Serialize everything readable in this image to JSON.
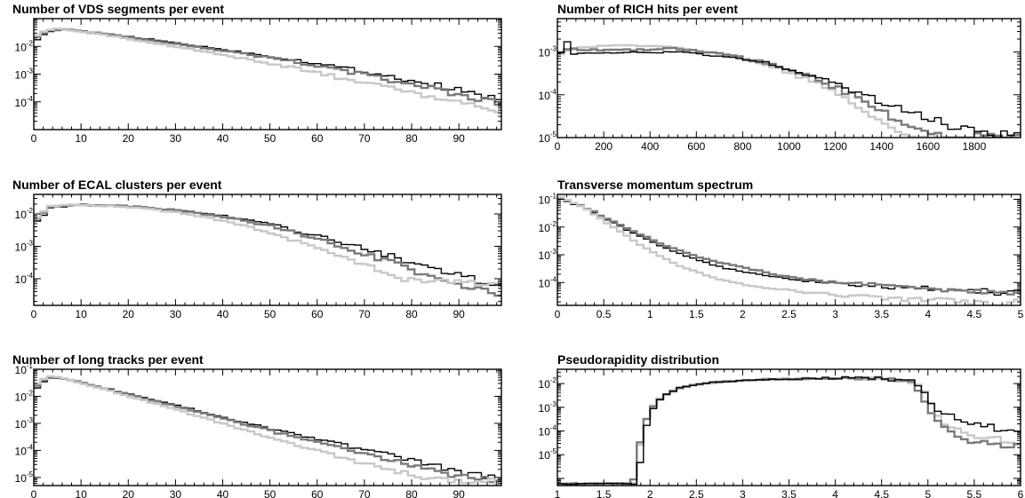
{
  "colors": {
    "black": "#000000",
    "dark_gray": "#7a7a7a",
    "light_gray": "#c8c8c8"
  },
  "chart_data": [
    {
      "id": "vds",
      "type": "line",
      "title": "Number of VDS segments per event",
      "xlim": [
        0,
        99
      ],
      "ylim": [
        1e-05,
        0.1
      ],
      "yscale": "log",
      "xticks": [
        0,
        10,
        20,
        30,
        40,
        50,
        60,
        70,
        80,
        90
      ],
      "xtick_labels": [
        "0",
        "10",
        "20",
        "30",
        "40",
        "50",
        "60",
        "70",
        "80",
        "90"
      ],
      "yticks": [
        0.0001,
        0.001,
        0.01
      ],
      "ytick_exps": [
        "-4",
        "-3",
        "-2"
      ],
      "ytick_base": "10",
      "series": [
        {
          "color": "black",
          "x": [
            0,
            2,
            5,
            8,
            15,
            25,
            40,
            55,
            70,
            85,
            99
          ],
          "y": [
            0.018,
            0.032,
            0.04,
            0.037,
            0.028,
            0.017,
            0.0075,
            0.0032,
            0.0012,
            0.00038,
            0.00011
          ]
        },
        {
          "color": "dark_gray",
          "x": [
            0,
            2,
            5,
            8,
            15,
            25,
            40,
            55,
            70,
            85,
            99
          ],
          "y": [
            0.022,
            0.036,
            0.042,
            0.038,
            0.027,
            0.016,
            0.0068,
            0.0027,
            0.0009,
            0.00026,
            8e-05
          ]
        },
        {
          "color": "light_gray",
          "x": [
            0,
            2,
            5,
            8,
            15,
            25,
            40,
            55,
            70,
            85,
            99
          ],
          "y": [
            0.025,
            0.04,
            0.043,
            0.037,
            0.025,
            0.013,
            0.0048,
            0.0016,
            0.00045,
            0.00013,
            4e-05
          ]
        }
      ]
    },
    {
      "id": "rich",
      "type": "line",
      "title": "Number of RICH hits per event",
      "xlim": [
        0,
        2000
      ],
      "ylim": [
        1e-05,
        0.006
      ],
      "yscale": "log",
      "xticks": [
        0,
        200,
        400,
        600,
        800,
        1000,
        1200,
        1400,
        1600,
        1800
      ],
      "xtick_labels": [
        "0",
        "200",
        "400",
        "600",
        "800",
        "1000",
        "1200",
        "1400",
        "1600",
        "1800"
      ],
      "yticks": [
        1e-05,
        0.0001,
        0.001
      ],
      "ytick_exps": [
        "-5",
        "-4",
        "-3"
      ],
      "ytick_base": "10",
      "series": [
        {
          "color": "light_gray",
          "x": [
            0,
            25,
            100,
            300,
            500,
            700,
            900,
            1100,
            1300,
            1450,
            1500
          ],
          "y": [
            0.0009,
            0.0011,
            0.0013,
            0.0014,
            0.0013,
            0.0009,
            0.0005,
            0.00019,
            5e-05,
            1.5e-05,
            1e-05
          ]
        },
        {
          "color": "dark_gray",
          "x": [
            0,
            25,
            100,
            300,
            500,
            700,
            900,
            1100,
            1300,
            1500,
            1650
          ],
          "y": [
            0.001,
            0.0012,
            0.0011,
            0.0011,
            0.0012,
            0.0009,
            0.00055,
            0.00024,
            8e-05,
            1.8e-05,
            1e-05
          ]
        },
        {
          "color": "black",
          "x": [
            0,
            20,
            50,
            100,
            300,
            500,
            700,
            900,
            1100,
            1300,
            1500,
            1700,
            2000
          ],
          "y": [
            0.001,
            0.0022,
            0.0009,
            0.0009,
            0.001,
            0.00098,
            0.0008,
            0.00055,
            0.00027,
            0.0001,
            4e-05,
            1.8e-05,
            1e-05
          ]
        }
      ]
    },
    {
      "id": "ecal",
      "type": "line",
      "title": "Number of ECAL clusters per event",
      "xlim": [
        0,
        99
      ],
      "ylim": [
        1.5e-05,
        0.04
      ],
      "yscale": "log",
      "xticks": [
        0,
        10,
        20,
        30,
        40,
        50,
        60,
        70,
        80,
        90
      ],
      "xtick_labels": [
        "0",
        "10",
        "20",
        "30",
        "40",
        "50",
        "60",
        "70",
        "80",
        "90"
      ],
      "yticks": [
        0.0001,
        0.001,
        0.01
      ],
      "ytick_exps": [
        "-4",
        "-3",
        "-2"
      ],
      "ytick_base": "10",
      "series": [
        {
          "color": "black",
          "x": [
            0,
            3,
            10,
            20,
            30,
            40,
            50,
            60,
            70,
            80,
            90,
            99
          ],
          "y": [
            0.006,
            0.016,
            0.019,
            0.017,
            0.013,
            0.0085,
            0.0045,
            0.002,
            0.0008,
            0.0003,
            0.00012,
            6e-05
          ]
        },
        {
          "color": "dark_gray",
          "x": [
            0,
            3,
            10,
            20,
            30,
            40,
            50,
            60,
            70,
            80,
            90,
            99
          ],
          "y": [
            0.007,
            0.017,
            0.019,
            0.017,
            0.0125,
            0.008,
            0.004,
            0.0016,
            0.00055,
            0.00018,
            6e-05,
            3e-05
          ]
        },
        {
          "color": "light_gray",
          "x": [
            0,
            3,
            10,
            20,
            30,
            40,
            50,
            60,
            70,
            80
          ],
          "y": [
            0.008,
            0.018,
            0.019,
            0.016,
            0.011,
            0.006,
            0.0025,
            0.0008,
            0.00025,
            8e-05
          ]
        }
      ]
    },
    {
      "id": "pt",
      "type": "line",
      "title": "Transverse momentum spectrum",
      "xlim": [
        0,
        5
      ],
      "ylim": [
        1.5e-05,
        0.15
      ],
      "yscale": "log",
      "xticks": [
        0,
        0.5,
        1,
        1.5,
        2,
        2.5,
        3,
        3.5,
        4,
        4.5,
        5
      ],
      "xtick_labels": [
        "0",
        "0.5",
        "1",
        "1.5",
        "2",
        "2.5",
        "3",
        "3.5",
        "4",
        "4.5",
        "5"
      ],
      "yticks": [
        0.0001,
        0.001,
        0.01,
        0.1
      ],
      "ytick_exps": [
        "-4",
        "-3",
        "-2",
        "-1"
      ],
      "ytick_base": "10",
      "series": [
        {
          "color": "black",
          "x": [
            0,
            0.25,
            0.5,
            0.75,
            1,
            1.25,
            1.5,
            1.75,
            2,
            2.5,
            3,
            3.5,
            4,
            4.5,
            5
          ],
          "y": [
            0.1,
            0.05,
            0.018,
            0.007,
            0.0028,
            0.0012,
            0.0006,
            0.00035,
            0.00023,
            0.00013,
            9e-05,
            7e-05,
            6e-05,
            5e-05,
            4e-05
          ]
        },
        {
          "color": "dark_gray",
          "x": [
            0,
            0.25,
            0.5,
            0.75,
            1,
            1.25,
            1.5,
            1.75,
            2,
            2.5,
            3,
            3.5,
            4,
            4.5,
            5
          ],
          "y": [
            0.11,
            0.055,
            0.02,
            0.008,
            0.0033,
            0.0015,
            0.0008,
            0.0005,
            0.00033,
            0.00015,
            0.0001,
            8e-05,
            6e-05,
            4.8e-05,
            4e-05
          ]
        },
        {
          "color": "light_gray",
          "x": [
            0,
            0.25,
            0.5,
            0.75,
            1,
            1.25,
            1.5,
            1.75,
            2,
            2.5,
            3,
            3.5,
            4,
            4.5,
            5
          ],
          "y": [
            0.12,
            0.05,
            0.014,
            0.004,
            0.0012,
            0.00045,
            0.00022,
            0.00012,
            8e-05,
            5e-05,
            3.5e-05,
            2.8e-05,
            2.3e-05,
            2e-05,
            1.8e-05
          ]
        }
      ]
    },
    {
      "id": "tracks",
      "type": "line",
      "title": "Number of long tracks per event",
      "xlim": [
        0,
        99
      ],
      "ylim": [
        5e-06,
        0.1
      ],
      "yscale": "log",
      "xticks": [
        0,
        10,
        20,
        30,
        40,
        50,
        60,
        70,
        80,
        90
      ],
      "xtick_labels": [
        "0",
        "10",
        "20",
        "30",
        "40",
        "50",
        "60",
        "70",
        "80",
        "90"
      ],
      "yticks": [
        1e-05,
        0.0001,
        0.001,
        0.01,
        0.1
      ],
      "ytick_exps": [
        "-5",
        "-4",
        "-3",
        "-2",
        "-1"
      ],
      "ytick_base": "10",
      "series": [
        {
          "color": "black",
          "x": [
            0,
            2,
            4,
            10,
            20,
            30,
            40,
            50,
            60,
            70,
            80,
            90,
            99
          ],
          "y": [
            0.02,
            0.045,
            0.05,
            0.03,
            0.012,
            0.0045,
            0.0016,
            0.0006,
            0.00024,
            0.0001,
            4e-05,
            1.5e-05,
            8e-06
          ]
        },
        {
          "color": "dark_gray",
          "x": [
            0,
            2,
            4,
            10,
            20,
            30,
            40,
            50,
            60,
            70,
            80,
            90,
            99
          ],
          "y": [
            0.025,
            0.05,
            0.052,
            0.03,
            0.011,
            0.004,
            0.0014,
            0.0005,
            0.00018,
            7e-05,
            2.5e-05,
            1e-05,
            7e-06
          ]
        },
        {
          "color": "light_gray",
          "x": [
            0,
            2,
            4,
            10,
            20,
            30,
            40,
            50,
            60,
            70,
            80,
            90
          ],
          "y": [
            0.03,
            0.055,
            0.053,
            0.029,
            0.0095,
            0.003,
            0.0009,
            0.00028,
            9e-05,
            3e-05,
            1.2e-05,
            7e-06
          ]
        }
      ]
    },
    {
      "id": "eta",
      "type": "line",
      "title": "Pseudorapidity distribution",
      "xlim": [
        1,
        6
      ],
      "ylim": [
        5e-07,
        0.04
      ],
      "yscale": "log",
      "xticks": [
        1,
        1.5,
        2,
        2.5,
        3,
        3.5,
        4,
        4.5,
        5,
        5.5,
        6
      ],
      "xtick_labels": [
        "1",
        "1.5",
        "2",
        "2.5",
        "3",
        "3.5",
        "4",
        "4.5",
        "5",
        "5.5",
        "6"
      ],
      "yticks": [
        1e-05,
        0.0001,
        0.001,
        0.01
      ],
      "ytick_exps": [
        "-5",
        "-4",
        "-3",
        "-2"
      ],
      "ytick_base": "10",
      "series": [
        {
          "color": "light_gray",
          "x": [
            1,
            1.8,
            1.85,
            1.95,
            2.1,
            2.3,
            2.6,
            3,
            3.5,
            4,
            4.5,
            4.8,
            4.95,
            5.1,
            5.4,
            6
          ],
          "y": [
            6e-07,
            6e-07,
            2e-05,
            0.0007,
            0.003,
            0.007,
            0.011,
            0.014,
            0.016,
            0.017,
            0.016,
            0.012,
            0.004,
            0.00025,
            7e-05,
            3e-05
          ]
        },
        {
          "color": "dark_gray",
          "x": [
            1,
            1.78,
            1.83,
            1.95,
            2.1,
            2.3,
            2.6,
            3,
            3.5,
            4,
            4.5,
            4.8,
            4.93,
            5.1,
            5.4,
            6
          ],
          "y": [
            6e-07,
            6e-07,
            1.5e-05,
            0.0006,
            0.003,
            0.007,
            0.011,
            0.014,
            0.016,
            0.017,
            0.016,
            0.011,
            0.002,
            0.00015,
            4e-05,
            2e-05
          ]
        },
        {
          "color": "black",
          "x": [
            1,
            1.82,
            1.87,
            1.95,
            2.1,
            2.3,
            2.6,
            3,
            3.5,
            4,
            4.5,
            4.8,
            4.95,
            5.1,
            5.4,
            6
          ],
          "y": [
            6e-07,
            6e-07,
            1e-05,
            0.0005,
            0.003,
            0.007,
            0.011,
            0.014,
            0.016,
            0.017,
            0.016,
            0.012,
            0.003,
            0.0006,
            0.00025,
            7e-05
          ]
        }
      ]
    }
  ]
}
